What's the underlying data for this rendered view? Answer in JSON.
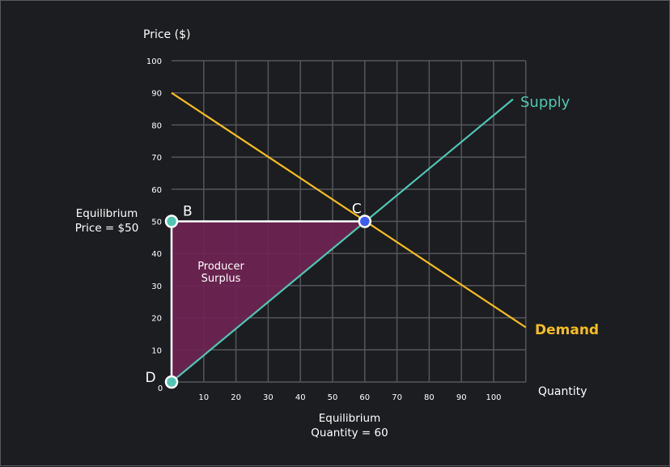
{
  "chart_data": {
    "type": "line",
    "ylabel": "Price ($)",
    "xlabel": "Quantity",
    "xlim": [
      0,
      110
    ],
    "ylim": [
      0,
      100
    ],
    "x_ticks": [
      0,
      10,
      20,
      30,
      40,
      50,
      60,
      70,
      80,
      90,
      100
    ],
    "y_ticks": [
      10,
      20,
      30,
      40,
      50,
      60,
      70,
      80,
      90,
      100
    ],
    "grid": true,
    "series": [
      {
        "name": "Supply",
        "color": "#4fc7b4",
        "points": [
          [
            0,
            0
          ],
          [
            106,
            88
          ]
        ]
      },
      {
        "name": "Demand",
        "color": "#f5bd1f",
        "points": [
          [
            0,
            90
          ],
          [
            110,
            17
          ]
        ]
      }
    ],
    "points": [
      {
        "label": "B",
        "x": 0,
        "y": 50,
        "color": "#4fc7b4"
      },
      {
        "label": "C",
        "x": 60,
        "y": 50,
        "color": "#3d5bf5"
      },
      {
        "label": "D",
        "x": 0,
        "y": 0,
        "color": "#4fc7b4"
      }
    ],
    "region": {
      "label_line1": "Producer",
      "label_line2": "Surplus",
      "color": "#6e2453",
      "vertices": [
        [
          0,
          0
        ],
        [
          0,
          50
        ],
        [
          60,
          50
        ]
      ]
    },
    "annotations": {
      "eq_price_line1": "Equilibrium",
      "eq_price_line2": "Price = $50",
      "eq_qty_line1": "Equilibrium",
      "eq_qty_line2": "Quantity = 60"
    }
  }
}
